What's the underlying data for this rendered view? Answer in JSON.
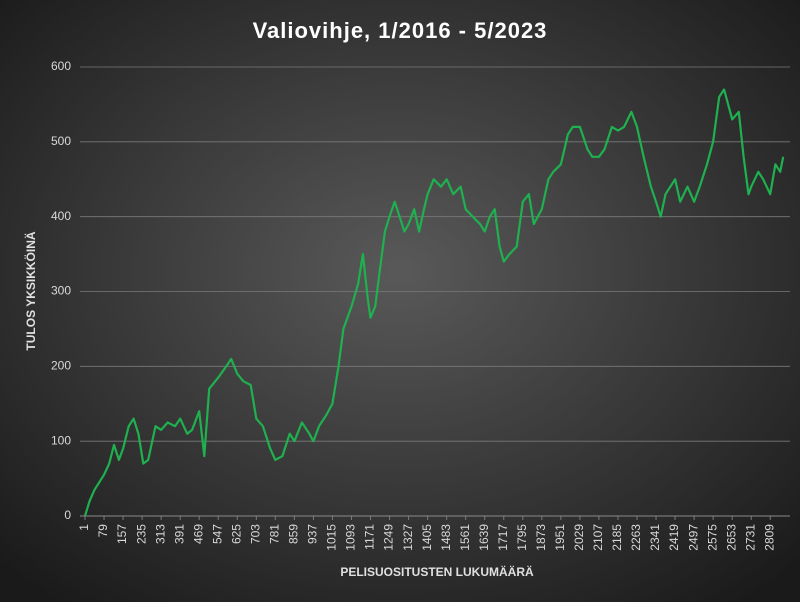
{
  "chart_data": {
    "type": "line",
    "title": "Valiovihje, 1/2016 - 5/2023",
    "x_label": "PELISUOSITUSTEN LUKUMÄÄRÄ",
    "y_label": "TULOS YKSIKKÖINÄ",
    "grid": true,
    "xlim": [
      1,
      2890
    ],
    "ylim": [
      0,
      600
    ],
    "yticks": [
      0,
      100,
      200,
      300,
      400,
      500,
      600
    ],
    "xticks": [
      1,
      79,
      157,
      235,
      313,
      391,
      469,
      547,
      625,
      703,
      781,
      859,
      937,
      1015,
      1093,
      1171,
      1249,
      1327,
      1405,
      1483,
      1561,
      1639,
      1717,
      1795,
      1873,
      1951,
      2029,
      2107,
      2185,
      2263,
      2341,
      2419,
      2497,
      2575,
      2653,
      2731,
      2809
    ],
    "series": [
      {
        "name": "Tulos",
        "color": "#1fb04f",
        "x": [
          1,
          20,
          40,
          79,
          100,
          120,
          140,
          157,
          180,
          200,
          220,
          240,
          260,
          290,
          313,
          340,
          370,
          391,
          420,
          440,
          469,
          490,
          510,
          547,
          580,
          600,
          625,
          650,
          680,
          703,
          730,
          760,
          781,
          810,
          840,
          859,
          890,
          920,
          937,
          960,
          990,
          1015,
          1040,
          1060,
          1093,
          1120,
          1140,
          1160,
          1171,
          1190,
          1210,
          1230,
          1249,
          1270,
          1290,
          1310,
          1327,
          1350,
          1370,
          1390,
          1405,
          1430,
          1460,
          1483,
          1510,
          1540,
          1561,
          1590,
          1620,
          1639,
          1660,
          1680,
          1700,
          1717,
          1740,
          1770,
          1795,
          1820,
          1840,
          1873,
          1900,
          1920,
          1951,
          1980,
          2000,
          2029,
          2060,
          2080,
          2107,
          2130,
          2160,
          2185,
          2210,
          2240,
          2263,
          2290,
          2320,
          2341,
          2360,
          2380,
          2419,
          2440,
          2470,
          2497,
          2520,
          2550,
          2575,
          2600,
          2620,
          2653,
          2680,
          2700,
          2720,
          2731,
          2760,
          2780,
          2809,
          2830,
          2850,
          2862
        ],
        "values": [
          0,
          20,
          35,
          55,
          70,
          95,
          75,
          90,
          120,
          130,
          110,
          70,
          75,
          120,
          115,
          125,
          120,
          130,
          110,
          115,
          140,
          80,
          170,
          185,
          200,
          210,
          190,
          180,
          175,
          130,
          120,
          90,
          75,
          80,
          110,
          100,
          125,
          110,
          100,
          120,
          135,
          150,
          200,
          250,
          280,
          310,
          350,
          290,
          265,
          280,
          330,
          380,
          400,
          420,
          400,
          380,
          390,
          410,
          380,
          410,
          430,
          450,
          440,
          450,
          430,
          440,
          410,
          400,
          390,
          380,
          400,
          410,
          360,
          340,
          350,
          360,
          420,
          430,
          390,
          410,
          450,
          460,
          470,
          510,
          520,
          520,
          490,
          480,
          480,
          490,
          520,
          515,
          520,
          540,
          520,
          480,
          440,
          420,
          400,
          430,
          450,
          420,
          440,
          420,
          440,
          470,
          500,
          560,
          570,
          530,
          540,
          480,
          430,
          440,
          460,
          450,
          430,
          470,
          460,
          480
        ]
      }
    ]
  }
}
